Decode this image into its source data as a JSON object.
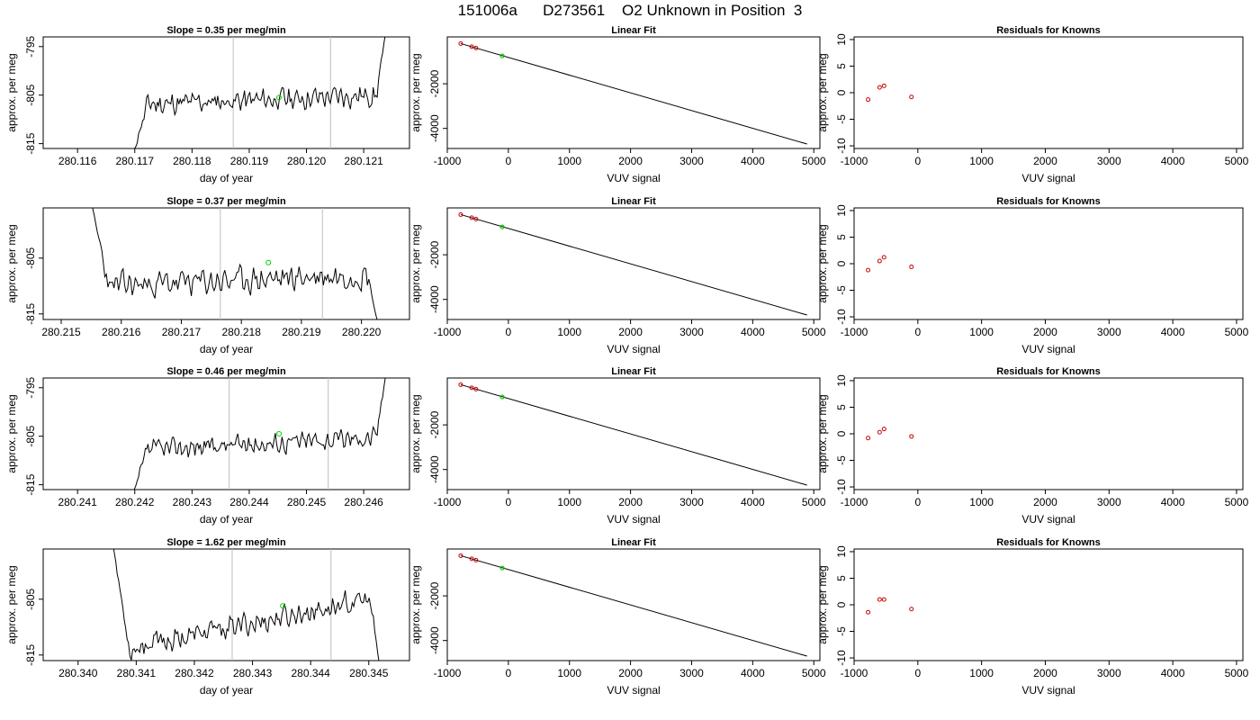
{
  "figure_title": "151006a      D273561    O2 Unknown in Position  3",
  "colors": {
    "trace": "#000000",
    "vline": "#bebebe",
    "known_point": "#cc0000",
    "unknown_point": "#00cc00",
    "fit_line": "#000000"
  },
  "rows": [
    {
      "time_plot": {
        "title": "Slope =  0.35  per meg/min",
        "xlabel": "day of year",
        "ylabel": "approx. per meg",
        "xlim": [
          280.1154,
          280.1218
        ],
        "ylim": [
          -816,
          -793
        ],
        "xticks": [
          280.116,
          280.117,
          280.118,
          280.119,
          280.12,
          280.121
        ],
        "xtick_labels": [
          "280.116",
          "280.117",
          "280.118",
          "280.119",
          "280.120",
          "280.121"
        ],
        "yticks": [
          -795,
          -805,
          -815
        ],
        "ytick_labels": [
          "-795",
          "-805",
          "-815"
        ],
        "trace_start": 280.11695,
        "trace_end": 280.1214,
        "trace_level": -806.0,
        "trace_slope": 0.35,
        "trace_amp": 1.6,
        "trace_y_start": -818,
        "trace_y_end": -791,
        "seed": 11,
        "vlines": [
          280.11872,
          280.12042
        ],
        "marker": {
          "x": 280.11952,
          "y": -805.5
        }
      },
      "linear_fit": {
        "title": "Linear Fit",
        "xlabel": "VUV signal",
        "ylabel": "approx. per meg",
        "xlim": [
          -1000,
          5100
        ],
        "ylim": [
          -4900,
          100
        ],
        "xticks": [
          -1000,
          0,
          1000,
          2000,
          3000,
          4000,
          5000
        ],
        "xtick_labels": [
          "-1000",
          "0",
          "1000",
          "2000",
          "3000",
          "4000",
          "5000"
        ],
        "yticks": [
          -2000,
          -4000
        ],
        "ytick_labels": [
          "-2000",
          "-4000"
        ],
        "line": {
          "x": [
            -780,
            4890
          ],
          "y": [
            -200,
            -4700
          ]
        },
        "knowns": [
          {
            "x": -780,
            "y": -200
          },
          {
            "x": -600,
            "y": -340
          },
          {
            "x": -530,
            "y": -400
          }
        ],
        "unknown": {
          "x": -100,
          "y": -750
        }
      },
      "residuals": {
        "title": "Residuals for Knowns",
        "xlabel": "VUV signal",
        "xlim": [
          -1000,
          5100
        ],
        "ylim": [
          -10.5,
          10.5
        ],
        "xticks": [
          -1000,
          0,
          1000,
          2000,
          3000,
          4000,
          5000
        ],
        "xtick_labels": [
          "-1000",
          "0",
          "1000",
          "2000",
          "3000",
          "4000",
          "5000"
        ],
        "yticks": [
          10,
          5,
          0,
          -5,
          -10
        ],
        "ytick_labels": [
          "10",
          "5",
          "0",
          "-5",
          "-10"
        ],
        "points": [
          {
            "x": -780,
            "y": -1.3
          },
          {
            "x": -600,
            "y": 1.0
          },
          {
            "x": -530,
            "y": 1.3
          },
          {
            "x": -100,
            "y": -0.8
          }
        ]
      }
    },
    {
      "time_plot": {
        "title": "Slope =  0.37  per meg/min",
        "xlabel": "day of year",
        "ylabel": "approx. per meg",
        "xlim": [
          280.2147,
          280.2208
        ],
        "ylim": [
          -816,
          -796
        ],
        "xticks": [
          280.215,
          280.216,
          280.217,
          280.218,
          280.219,
          280.22
        ],
        "xtick_labels": [
          "280.215",
          "280.216",
          "280.217",
          "280.218",
          "280.219",
          "280.220"
        ],
        "yticks": [
          -805,
          -815
        ],
        "ytick_labels": [
          "-805",
          "-815"
        ],
        "trace_start": 280.2155,
        "trace_end": 280.2203,
        "trace_level": -809.0,
        "trace_slope": 0.37,
        "trace_amp": 1.7,
        "trace_y_start": -795,
        "trace_y_end": -818,
        "seed": 23,
        "vlines": [
          280.21765,
          280.21935
        ],
        "marker": {
          "x": 280.21845,
          "y": -805.8
        }
      },
      "linear_fit": {
        "title": "Linear Fit",
        "xlabel": "VUV signal",
        "ylabel": "approx. per meg",
        "xlim": [
          -1000,
          5100
        ],
        "ylim": [
          -4900,
          100
        ],
        "xticks": [
          -1000,
          0,
          1000,
          2000,
          3000,
          4000,
          5000
        ],
        "xtick_labels": [
          "-1000",
          "0",
          "1000",
          "2000",
          "3000",
          "4000",
          "5000"
        ],
        "yticks": [
          -2000,
          -4000
        ],
        "ytick_labels": [
          "-2000",
          "-4000"
        ],
        "line": {
          "x": [
            -780,
            4890
          ],
          "y": [
            -200,
            -4700
          ]
        },
        "knowns": [
          {
            "x": -780,
            "y": -200
          },
          {
            "x": -600,
            "y": -340
          },
          {
            "x": -530,
            "y": -400
          }
        ],
        "unknown": {
          "x": -100,
          "y": -750
        }
      },
      "residuals": {
        "title": "Residuals for Knowns",
        "xlabel": "VUV signal",
        "xlim": [
          -1000,
          5100
        ],
        "ylim": [
          -10.5,
          10.5
        ],
        "xticks": [
          -1000,
          0,
          1000,
          2000,
          3000,
          4000,
          5000
        ],
        "xtick_labels": [
          "-1000",
          "0",
          "1000",
          "2000",
          "3000",
          "4000",
          "5000"
        ],
        "yticks": [
          10,
          5,
          0,
          -5,
          -10
        ],
        "ytick_labels": [
          "10",
          "5",
          "0",
          "-5",
          "-10"
        ],
        "points": [
          {
            "x": -780,
            "y": -1.2
          },
          {
            "x": -600,
            "y": 0.5
          },
          {
            "x": -530,
            "y": 1.2
          },
          {
            "x": -100,
            "y": -0.6
          }
        ]
      }
    },
    {
      "time_plot": {
        "title": "Slope =  0.46  per meg/min",
        "xlabel": "day of year",
        "ylabel": "approx. per meg",
        "xlim": [
          280.2404,
          280.2468
        ],
        "ylim": [
          -816,
          -793
        ],
        "xticks": [
          280.241,
          280.242,
          280.243,
          280.244,
          280.245,
          280.246
        ],
        "xtick_labels": [
          "280.241",
          "280.242",
          "280.243",
          "280.244",
          "280.245",
          "280.246"
        ],
        "yticks": [
          -795,
          -805,
          -815
        ],
        "ytick_labels": [
          "-795",
          "-805",
          "-815"
        ],
        "trace_start": 280.24195,
        "trace_end": 280.2464,
        "trace_level": -806.5,
        "trace_slope": 0.46,
        "trace_amp": 1.5,
        "trace_y_start": -818,
        "trace_y_end": -791,
        "seed": 37,
        "vlines": [
          280.24365,
          280.24538
        ],
        "marker": {
          "x": 280.24452,
          "y": -804.5
        }
      },
      "linear_fit": {
        "title": "Linear Fit",
        "xlabel": "VUV signal",
        "ylabel": "approx. per meg",
        "xlim": [
          -1000,
          5100
        ],
        "ylim": [
          -4900,
          100
        ],
        "xticks": [
          -1000,
          0,
          1000,
          2000,
          3000,
          4000,
          5000
        ],
        "xtick_labels": [
          "-1000",
          "0",
          "1000",
          "2000",
          "3000",
          "4000",
          "5000"
        ],
        "yticks": [
          -2000,
          -4000
        ],
        "ytick_labels": [
          "-2000",
          "-4000"
        ],
        "line": {
          "x": [
            -780,
            4890
          ],
          "y": [
            -200,
            -4700
          ]
        },
        "knowns": [
          {
            "x": -780,
            "y": -200
          },
          {
            "x": -600,
            "y": -340
          },
          {
            "x": -530,
            "y": -400
          }
        ],
        "unknown": {
          "x": -100,
          "y": -750
        }
      },
      "residuals": {
        "title": "Residuals for Knowns",
        "xlabel": "VUV signal",
        "xlim": [
          -1000,
          5100
        ],
        "ylim": [
          -10.5,
          10.5
        ],
        "xticks": [
          -1000,
          0,
          1000,
          2000,
          3000,
          4000,
          5000
        ],
        "xtick_labels": [
          "-1000",
          "0",
          "1000",
          "2000",
          "3000",
          "4000",
          "5000"
        ],
        "yticks": [
          10,
          5,
          0,
          -5,
          -10
        ],
        "ytick_labels": [
          "10",
          "5",
          "0",
          "-5",
          "-10"
        ],
        "points": [
          {
            "x": -780,
            "y": -0.8
          },
          {
            "x": -600,
            "y": 0.3
          },
          {
            "x": -530,
            "y": 0.9
          },
          {
            "x": -100,
            "y": -0.5
          }
        ]
      }
    },
    {
      "time_plot": {
        "title": "Slope =  1.62  per meg/min",
        "xlabel": "day of year",
        "ylabel": "approx. per meg",
        "xlim": [
          280.3394,
          280.3457
        ],
        "ylim": [
          -816,
          -796
        ],
        "xticks": [
          280.34,
          280.341,
          280.342,
          280.343,
          280.344,
          280.345
        ],
        "xtick_labels": [
          "280.340",
          "280.341",
          "280.342",
          "280.343",
          "280.344",
          "280.345"
        ],
        "yticks": [
          -805,
          -815
        ],
        "ytick_labels": [
          "-805",
          "-815"
        ],
        "trace_start": 280.3406,
        "trace_end": 280.3452,
        "trace_level": -809.5,
        "trace_slope": 1.62,
        "trace_amp": 1.5,
        "trace_y_start": -795,
        "trace_y_end": -818,
        "seed": 53,
        "vlines": [
          280.34265,
          280.34435
        ],
        "marker": {
          "x": 280.34352,
          "y": -806.2
        }
      },
      "linear_fit": {
        "title": "Linear Fit",
        "xlabel": "VUV signal",
        "ylabel": "approx. per meg",
        "xlim": [
          -1000,
          5100
        ],
        "ylim": [
          -4900,
          100
        ],
        "xticks": [
          -1000,
          0,
          1000,
          2000,
          3000,
          4000,
          5000
        ],
        "xtick_labels": [
          "-1000",
          "0",
          "1000",
          "2000",
          "3000",
          "4000",
          "5000"
        ],
        "yticks": [
          -2000,
          -4000
        ],
        "ytick_labels": [
          "-2000",
          "-4000"
        ],
        "line": {
          "x": [
            -780,
            4890
          ],
          "y": [
            -200,
            -4700
          ]
        },
        "knowns": [
          {
            "x": -780,
            "y": -200
          },
          {
            "x": -600,
            "y": -340
          },
          {
            "x": -530,
            "y": -400
          }
        ],
        "unknown": {
          "x": -100,
          "y": -750
        }
      },
      "residuals": {
        "title": "Residuals for Knowns",
        "xlabel": "VUV signal",
        "xlim": [
          -1000,
          5100
        ],
        "ylim": [
          -10.5,
          10.5
        ],
        "xticks": [
          -1000,
          0,
          1000,
          2000,
          3000,
          4000,
          5000
        ],
        "xtick_labels": [
          "-1000",
          "0",
          "1000",
          "2000",
          "3000",
          "4000",
          "5000"
        ],
        "yticks": [
          10,
          5,
          0,
          -5,
          -10
        ],
        "ytick_labels": [
          "10",
          "5",
          "0",
          "-5",
          "-10"
        ],
        "points": [
          {
            "x": -780,
            "y": -1.4
          },
          {
            "x": -600,
            "y": 1.0
          },
          {
            "x": -530,
            "y": 1.0
          },
          {
            "x": -100,
            "y": -0.8
          }
        ]
      }
    }
  ],
  "chart_data": [
    {
      "type": "line",
      "title": "Slope =  0.35  per meg/min",
      "xlabel": "day of year",
      "ylabel": "approx. per meg",
      "xlim": [
        280.1154,
        280.1218
      ],
      "ylim": [
        -816,
        -793
      ],
      "slope_per_meg_per_min": 0.35,
      "vlines": [
        280.11872,
        280.12042
      ]
    },
    {
      "type": "line",
      "title": "Linear Fit",
      "xlabel": "VUV signal",
      "ylabel": "approx. per meg",
      "xlim": [
        -1000,
        5100
      ],
      "ylim": [
        -4900,
        100
      ],
      "knowns_x": [
        -780,
        -600,
        -530
      ],
      "knowns_y": [
        -200,
        -340,
        -400
      ],
      "unknown": [
        -100,
        -750
      ]
    },
    {
      "type": "scatter",
      "title": "Residuals for Knowns",
      "xlabel": "VUV signal",
      "ylim": [
        -10.5,
        10.5
      ],
      "x": [
        -780,
        -600,
        -530,
        -100
      ],
      "y": [
        -1.3,
        1.0,
        1.3,
        -0.8
      ]
    },
    {
      "type": "line",
      "title": "Slope =  0.37  per meg/min",
      "xlabel": "day of year",
      "ylabel": "approx. per meg",
      "xlim": [
        280.2147,
        280.2208
      ],
      "ylim": [
        -816,
        -796
      ],
      "slope_per_meg_per_min": 0.37,
      "vlines": [
        280.21765,
        280.21935
      ]
    },
    {
      "type": "line",
      "title": "Linear Fit",
      "xlabel": "VUV signal",
      "ylabel": "approx. per meg",
      "xlim": [
        -1000,
        5100
      ],
      "ylim": [
        -4900,
        100
      ],
      "knowns_x": [
        -780,
        -600,
        -530
      ],
      "knowns_y": [
        -200,
        -340,
        -400
      ],
      "unknown": [
        -100,
        -750
      ]
    },
    {
      "type": "scatter",
      "title": "Residuals for Knowns",
      "xlabel": "VUV signal",
      "ylim": [
        -10.5,
        10.5
      ],
      "x": [
        -780,
        -600,
        -530,
        -100
      ],
      "y": [
        -1.2,
        0.5,
        1.2,
        -0.6
      ]
    },
    {
      "type": "line",
      "title": "Slope =  0.46  per meg/min",
      "xlabel": "day of year",
      "ylabel": "approx. per meg",
      "xlim": [
        280.2404,
        280.2468
      ],
      "ylim": [
        -816,
        -793
      ],
      "slope_per_meg_per_min": 0.46,
      "vlines": [
        280.24365,
        280.24538
      ]
    },
    {
      "type": "line",
      "title": "Linear Fit",
      "xlabel": "VUV signal",
      "ylabel": "approx. per meg",
      "xlim": [
        -1000,
        5100
      ],
      "ylim": [
        -4900,
        100
      ],
      "knowns_x": [
        -780,
        -600,
        -530
      ],
      "knowns_y": [
        -200,
        -340,
        -400
      ],
      "unknown": [
        -100,
        -750
      ]
    },
    {
      "type": "scatter",
      "title": "Residuals for Knowns",
      "xlabel": "VUV signal",
      "ylim": [
        -10.5,
        10.5
      ],
      "x": [
        -780,
        -600,
        -530,
        -100
      ],
      "y": [
        -0.8,
        0.3,
        0.9,
        -0.5
      ]
    },
    {
      "type": "line",
      "title": "Slope =  1.62  per meg/min",
      "xlabel": "day of year",
      "ylabel": "approx. per meg",
      "xlim": [
        280.3394,
        280.3457
      ],
      "ylim": [
        -816,
        -796
      ],
      "slope_per_meg_per_min": 1.62,
      "vlines": [
        280.34265,
        280.34435
      ]
    },
    {
      "type": "line",
      "title": "Linear Fit",
      "xlabel": "VUV signal",
      "ylabel": "approx. per meg",
      "xlim": [
        -1000,
        5100
      ],
      "ylim": [
        -4900,
        100
      ],
      "knowns_x": [
        -780,
        -600,
        -530
      ],
      "knowns_y": [
        -200,
        -340,
        -400
      ],
      "unknown": [
        -100,
        -750
      ]
    },
    {
      "type": "scatter",
      "title": "Residuals for Knowns",
      "xlabel": "VUV signal",
      "ylim": [
        -10.5,
        10.5
      ],
      "x": [
        -780,
        -600,
        -530,
        -100
      ],
      "y": [
        -1.4,
        1.0,
        1.0,
        -0.8
      ]
    }
  ]
}
